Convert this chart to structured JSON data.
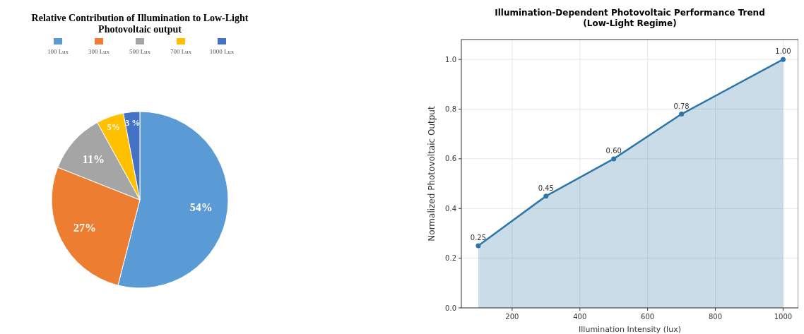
{
  "chart_data": [
    {
      "type": "pie",
      "title": "Relative Contribution of Illumination to Low-Light Photovoltaic output",
      "categories": [
        "100 Lux",
        "300 Lux",
        "500 Lux",
        "700 Lux",
        "1000 Lux"
      ],
      "values": [
        54,
        27,
        11,
        5,
        3
      ],
      "colors": [
        "#5b9bd5",
        "#ed7d31",
        "#a5a5a5",
        "#ffc000",
        "#4472c4"
      ],
      "value_labels": [
        "54%",
        "27%",
        "11%",
        "5%",
        "3 %"
      ],
      "legend": "top"
    },
    {
      "type": "area",
      "title": "Illumination-Dependent Photovoltaic Performance Trend\n(Low-Light Regime)",
      "xlabel": "Illumination Intensity (lux)",
      "ylabel": "Normalized Photovoltaic Output",
      "x": [
        100,
        300,
        500,
        700,
        1000
      ],
      "xlim": [
        50,
        1045
      ],
      "xticks": [
        200,
        400,
        600,
        800,
        1000
      ],
      "ylim": [
        0,
        1.08
      ],
      "yticks": [
        {
          "value": 0,
          "label": "0.0"
        },
        {
          "value": 0.2,
          "label": "0.2"
        },
        {
          "value": 0.4,
          "label": "0.4"
        },
        {
          "value": 0.6,
          "label": "0.6"
        },
        {
          "value": 0.8,
          "label": "0.8"
        },
        {
          "value": 1,
          "label": "1.0"
        }
      ],
      "series": [
        {
          "color": "#2e75a8",
          "values": [
            0.25,
            0.45,
            0.6,
            0.78,
            1.0
          ],
          "value_labels": [
            "0.25",
            "0.45",
            "0.60",
            "0.78",
            "1.00"
          ]
        }
      ],
      "grid": true,
      "marker": "circle"
    }
  ]
}
